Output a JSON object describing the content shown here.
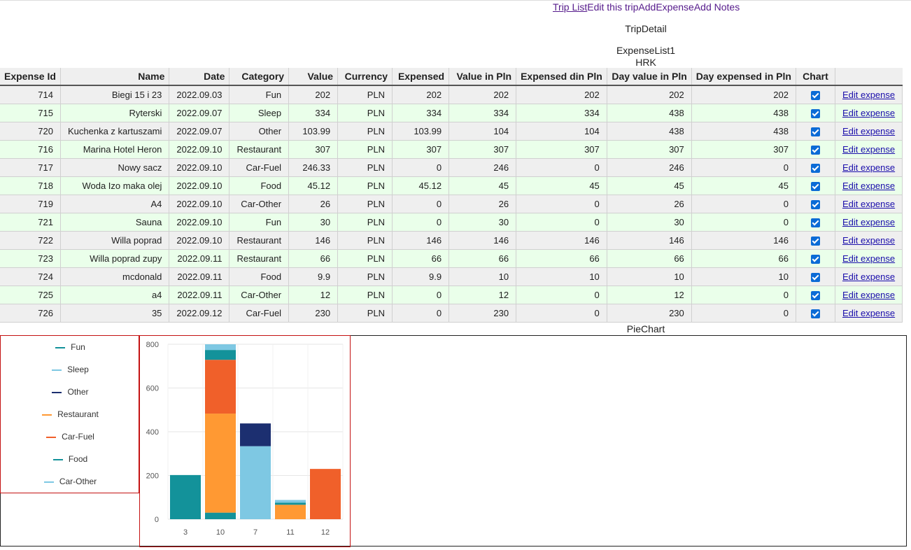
{
  "nav": {
    "trip_list": "Trip List",
    "edit_trip": "Edit this trip",
    "add_expense": "AddExpense",
    "add_notes": "Add Notes"
  },
  "labels": {
    "trip_detail": "TripDetail",
    "expense_list": "ExpenseList1",
    "currency": "HRK",
    "pie_chart": "PieChart"
  },
  "table": {
    "headers": [
      "Expense Id",
      "Name",
      "Date",
      "Category",
      "Value",
      "Currency",
      "Expensed",
      "Value in Pln",
      "Expensed din Pln",
      "Day value in Pln",
      "Day expensed in Pln",
      "Chart"
    ],
    "edit_label": "Edit expense",
    "rows": [
      [
        "714",
        "Biegi 15 i 23",
        "2022.09.03",
        "Fun",
        "202",
        "PLN",
        "202",
        "202",
        "202",
        "202",
        "202"
      ],
      [
        "715",
        "Ryterski",
        "2022.09.07",
        "Sleep",
        "334",
        "PLN",
        "334",
        "334",
        "334",
        "438",
        "438"
      ],
      [
        "720",
        "Kuchenka z kartuszami",
        "2022.09.07",
        "Other",
        "103.99",
        "PLN",
        "103.99",
        "104",
        "104",
        "438",
        "438"
      ],
      [
        "716",
        "Marina Hotel Heron",
        "2022.09.10",
        "Restaurant",
        "307",
        "PLN",
        "307",
        "307",
        "307",
        "307",
        "307"
      ],
      [
        "717",
        "Nowy sacz",
        "2022.09.10",
        "Car-Fuel",
        "246.33",
        "PLN",
        "0",
        "246",
        "0",
        "246",
        "0"
      ],
      [
        "718",
        "Woda Izo maka olej",
        "2022.09.10",
        "Food",
        "45.12",
        "PLN",
        "45.12",
        "45",
        "45",
        "45",
        "45"
      ],
      [
        "719",
        "A4",
        "2022.09.10",
        "Car-Other",
        "26",
        "PLN",
        "0",
        "26",
        "0",
        "26",
        "0"
      ],
      [
        "721",
        "Sauna",
        "2022.09.10",
        "Fun",
        "30",
        "PLN",
        "0",
        "30",
        "0",
        "30",
        "0"
      ],
      [
        "722",
        "Willa poprad",
        "2022.09.10",
        "Restaurant",
        "146",
        "PLN",
        "146",
        "146",
        "146",
        "146",
        "146"
      ],
      [
        "723",
        "Willa poprad zupy",
        "2022.09.11",
        "Restaurant",
        "66",
        "PLN",
        "66",
        "66",
        "66",
        "66",
        "66"
      ],
      [
        "724",
        "mcdonald",
        "2022.09.11",
        "Food",
        "9.9",
        "PLN",
        "9.9",
        "10",
        "10",
        "10",
        "10"
      ],
      [
        "725",
        "a4",
        "2022.09.11",
        "Car-Other",
        "12",
        "PLN",
        "0",
        "12",
        "0",
        "12",
        "0"
      ],
      [
        "726",
        "35",
        "2022.09.12",
        "Car-Fuel",
        "230",
        "PLN",
        "0",
        "230",
        "0",
        "230",
        "0"
      ]
    ]
  },
  "legend": [
    {
      "label": "Fun",
      "color": "#13929a"
    },
    {
      "label": "Sleep",
      "color": "#7ec8e3"
    },
    {
      "label": "Other",
      "color": "#1c2f70"
    },
    {
      "label": "Restaurant",
      "color": "#ff9933"
    },
    {
      "label": "Car-Fuel",
      "color": "#f0602a"
    },
    {
      "label": "Food",
      "color": "#13929a"
    },
    {
      "label": "Car-Other",
      "color": "#7ec8e3"
    }
  ],
  "chart_data": {
    "type": "bar",
    "stacked": true,
    "categories": [
      "3",
      "10",
      "7",
      "11",
      "12"
    ],
    "ylim": [
      0,
      800
    ],
    "yticks": [
      0,
      200,
      400,
      600,
      800
    ],
    "grid": true,
    "series": [
      {
        "name": "Fun",
        "color": "#13929a",
        "values": [
          202,
          30,
          0,
          0,
          0
        ]
      },
      {
        "name": "Restaurant",
        "color": "#ff9933",
        "values": [
          0,
          453,
          0,
          66,
          0
        ]
      },
      {
        "name": "Car-Fuel",
        "color": "#f0602a",
        "values": [
          0,
          246,
          0,
          0,
          230
        ]
      },
      {
        "name": "Food",
        "color": "#13929a",
        "values": [
          0,
          45,
          0,
          10,
          0
        ]
      },
      {
        "name": "Car-Other",
        "color": "#7ec8e3",
        "values": [
          0,
          26,
          0,
          12,
          0
        ]
      },
      {
        "name": "Sleep",
        "color": "#7ec8e3",
        "values": [
          0,
          0,
          334,
          0,
          0
        ]
      },
      {
        "name": "Other",
        "color": "#1c2f70",
        "values": [
          0,
          0,
          104,
          0,
          0
        ]
      }
    ]
  }
}
